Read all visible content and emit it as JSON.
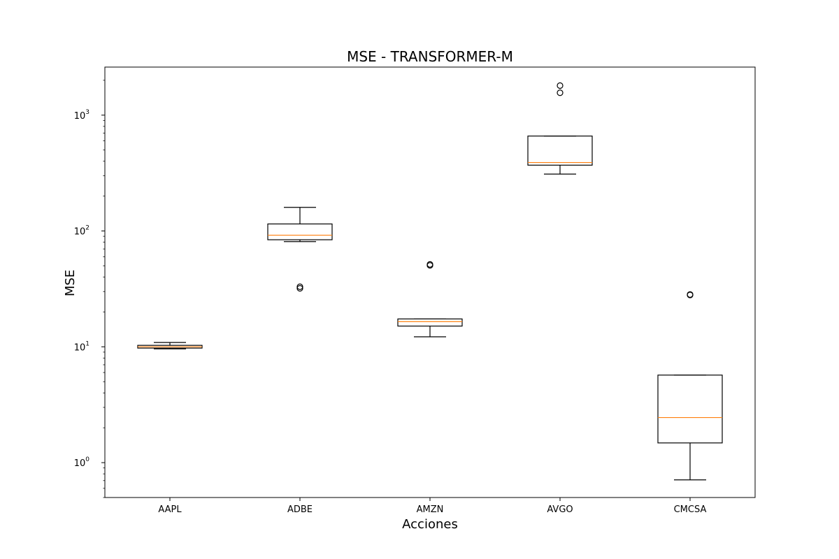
{
  "chart_data": {
    "type": "box",
    "title": "MSE - TRANSFORMER-M",
    "xlabel": "Acciones",
    "ylabel": "MSE",
    "yscale": "log",
    "ylim": [
      0.5,
      2600
    ],
    "yticks": [
      {
        "value": 1,
        "base": "10",
        "exp": "0"
      },
      {
        "value": 10,
        "base": "10",
        "exp": "1"
      },
      {
        "value": 100,
        "base": "10",
        "exp": "2"
      },
      {
        "value": 1000,
        "base": "10",
        "exp": "3"
      }
    ],
    "grid": false,
    "colors": {
      "box": "#000000",
      "median": "#ff7f0e",
      "background": "#ffffff"
    },
    "categories": [
      "AAPL",
      "ADBE",
      "AMZN",
      "AVGO",
      "CMCSA"
    ],
    "boxes": [
      {
        "category": "AAPL",
        "whisker_low": 9.6,
        "q1": 9.75,
        "median": 10.0,
        "q3": 10.3,
        "whisker_high": 10.9,
        "outliers": []
      },
      {
        "category": "ADBE",
        "whisker_low": 81,
        "q1": 84,
        "median": 92,
        "q3": 115,
        "whisker_high": 160,
        "outliers": [
          32,
          33
        ]
      },
      {
        "category": "AMZN",
        "whisker_low": 12.2,
        "q1": 15.1,
        "median": 16.5,
        "q3": 17.4,
        "whisker_high": 17.4,
        "outliers": [
          50.5,
          51.5
        ]
      },
      {
        "category": "AVGO",
        "whisker_low": 310,
        "q1": 370,
        "median": 390,
        "q3": 660,
        "whisker_high": 660,
        "outliers": [
          1560,
          1800
        ]
      },
      {
        "category": "CMCSA",
        "whisker_low": 0.71,
        "q1": 1.48,
        "median": 2.45,
        "q3": 5.7,
        "whisker_high": 5.7,
        "outliers": [
          28,
          28.3
        ]
      }
    ]
  }
}
